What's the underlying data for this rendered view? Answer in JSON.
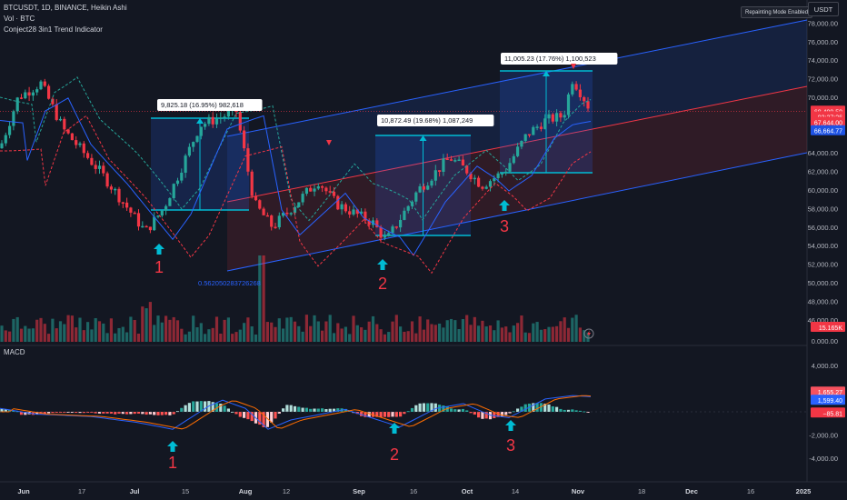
{
  "header": {
    "symbol_line": "BTCUSDT, 1D, BINANCE, Heikin Ashi",
    "volume_line": "Vol · BTC",
    "indicator_line": "Conject28 3in1 Trend Indicator",
    "repaint_button": "Repainting Mode Enabled",
    "currency_button": "USDT"
  },
  "price_axis": {
    "ticks": [
      "78,000.00",
      "76,000.00",
      "74,000.00",
      "72,000.00",
      "70,000.00",
      "64,000.00",
      "62,000.00",
      "60,000.00",
      "58,000.00",
      "56,000.00",
      "54,000.00",
      "52,000.00",
      "50,000.00",
      "48,000.00",
      "46,000.00"
    ],
    "tick_values": [
      78000,
      76000,
      74000,
      72000,
      70000,
      64000,
      62000,
      60000,
      58000,
      56000,
      54000,
      52000,
      50000,
      48000,
      46000
    ],
    "labels": [
      {
        "text": "68,499.59",
        "value": 68499.59,
        "color": "#f23645"
      },
      {
        "text": "03:37:26",
        "value": 67900,
        "color": "#f23645"
      },
      {
        "text": "67,644.00",
        "value": 67300,
        "color": "#f23645"
      },
      {
        "text": "66,664.77",
        "value": 66400,
        "color": "#1e53e5"
      },
      {
        "text": "15.165K",
        "value": 45200,
        "color": "#f23645"
      }
    ],
    "volume_axis_label": "0.000.00"
  },
  "macd_axis": {
    "ticks": [
      "4,000.00",
      "-2,000.00",
      "-4,000.00"
    ],
    "tick_values": [
      4000,
      -2000,
      -4000
    ],
    "labels": [
      {
        "text": "1,655.27",
        "value": 1700,
        "color": "#f7525f"
      },
      {
        "text": "1,599.40",
        "value": 1000,
        "color": "#2962ff"
      },
      {
        "text": "−85.81",
        "value": -100,
        "color": "#f23645"
      }
    ],
    "pane_title": "MACD"
  },
  "time_axis": {
    "labels": [
      "Jun",
      "17",
      "Jul",
      "15",
      "Aug",
      "12",
      "Sep",
      "16",
      "Oct",
      "14",
      "Nov",
      "18",
      "Dec",
      "16",
      "2025"
    ],
    "bold": [
      "Jun",
      "Jul",
      "Aug",
      "Sep",
      "Oct",
      "Nov",
      "Dec",
      "2025"
    ]
  },
  "annotations": {
    "measure_1": "9,825.18 (16.95%) 982,618",
    "measure_2": "10,872.49 (19.68%) 1,087,249",
    "measure_3": "11,005.23 (17.76%) 1,100,523",
    "fib_value": "0.562050283726268",
    "signals": [
      "1",
      "2",
      "3"
    ],
    "macd_signals": [
      "1",
      "2",
      "3"
    ]
  },
  "colors": {
    "up": "#26a69a",
    "down": "#f23645",
    "channel_upper": "#2962ff",
    "channel_mid": "#f23645",
    "measure": "#00bcd4",
    "signal_text": "#f23645"
  }
}
